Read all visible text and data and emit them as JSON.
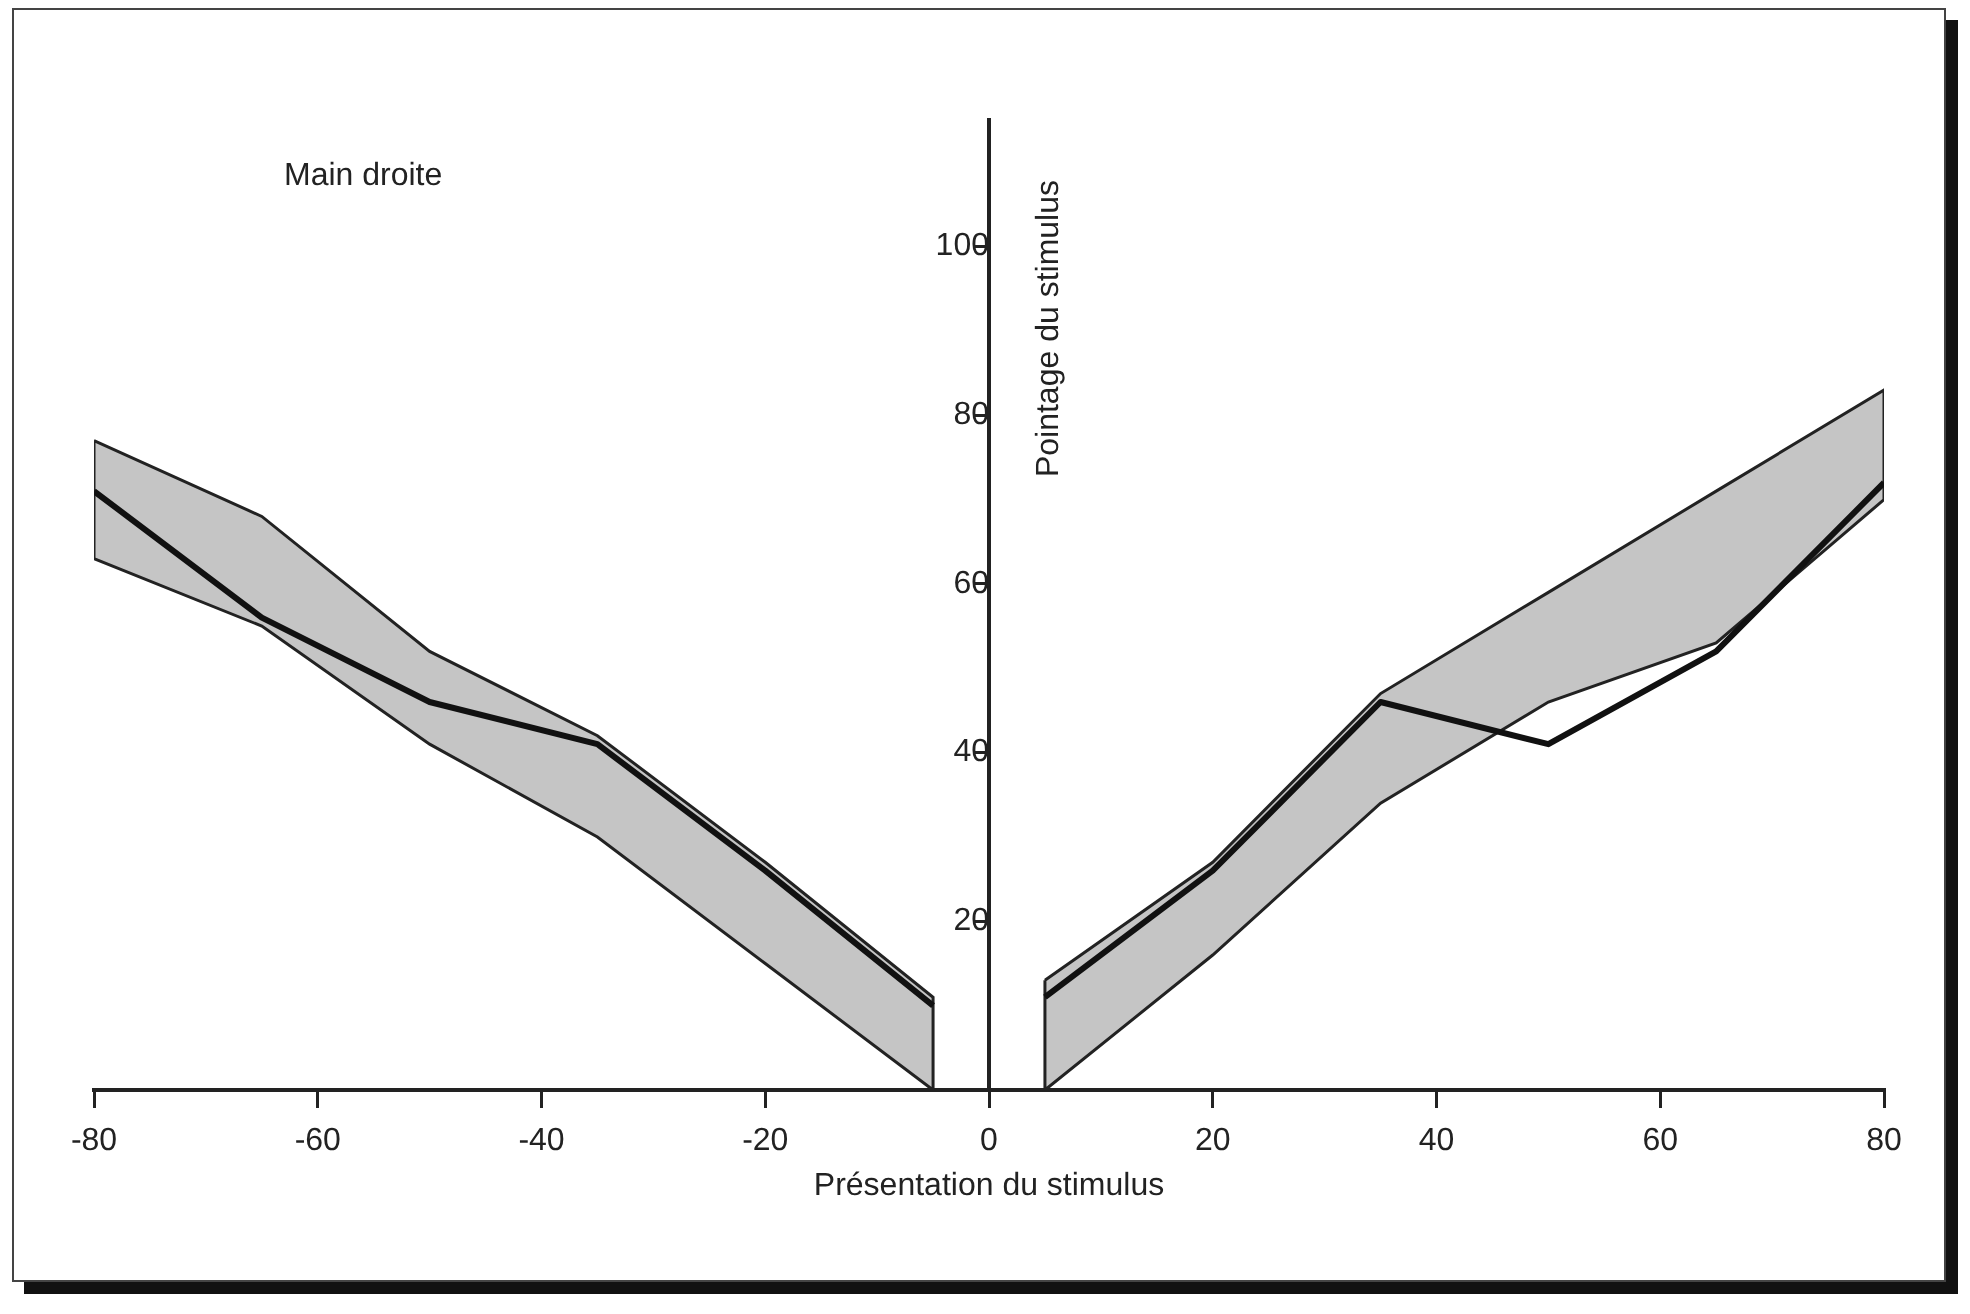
{
  "chart_data": {
    "type": "line",
    "xlabel": "Présentation du stimulus",
    "ylabel": "Pointage du stimulus",
    "annotations": [
      "Main droite"
    ],
    "xlim": [
      -80,
      80
    ],
    "ylim": [
      0,
      115
    ],
    "xticks": [
      -80,
      -60,
      -40,
      -20,
      0,
      20,
      40,
      60,
      80
    ],
    "yticks": [
      20,
      40,
      60,
      80,
      100
    ],
    "series": [
      {
        "color": "#111111",
        "x": [
          -80,
          -65,
          -50,
          -35,
          -20,
          -5
        ],
        "values": [
          71,
          56,
          46,
          41,
          26,
          10
        ],
        "lower": [
          63,
          55,
          41,
          30,
          15,
          0
        ],
        "upper": [
          77,
          68,
          52,
          42,
          27,
          11
        ]
      },
      {
        "color": "#111111",
        "x": [
          5,
          20,
          35,
          50,
          65,
          80
        ],
        "values": [
          11,
          26,
          46,
          41,
          52,
          72
        ],
        "lower": [
          0,
          16,
          34,
          46,
          53,
          70
        ],
        "upper": [
          13,
          27,
          47,
          59,
          71,
          83
        ]
      }
    ]
  }
}
